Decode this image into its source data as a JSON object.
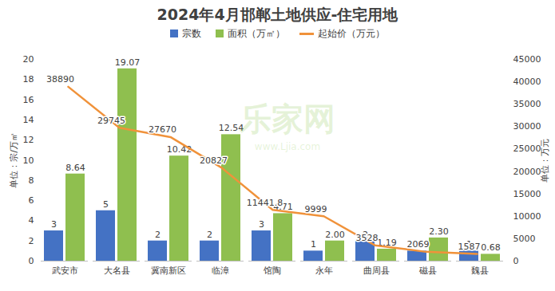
{
  "chart_data": {
    "type": "bar",
    "title": "2024年4月邯郸土地供应-住宅用地",
    "categories": [
      "武安市",
      "大名县",
      "冀南新区",
      "临漳",
      "馆陶",
      "永年",
      "曲周县",
      "磁县",
      "魏县"
    ],
    "series": [
      {
        "name": "宗数",
        "type": "bar",
        "color": "#4472c4",
        "values": [
          3,
          5,
          2,
          2,
          3,
          1,
          2,
          1,
          1
        ]
      },
      {
        "name": "面积（万㎡）",
        "type": "bar",
        "color": "#8fbf4f",
        "values": [
          8.64,
          19.07,
          10.42,
          12.54,
          4.71,
          2.0,
          1.19,
          2.3,
          0.68
        ],
        "value_labels": [
          "8.64",
          "19.07",
          "10.42",
          "12.54",
          "4.71",
          "2.00",
          "1.19",
          "2.30",
          "0.68"
        ]
      },
      {
        "name": "起始价（万元）",
        "type": "line",
        "axis": "y2",
        "color": "#f0923a",
        "values": [
          38890,
          29745,
          27670,
          20827,
          11441.8,
          9999,
          3528,
          2069,
          1587
        ]
      }
    ],
    "ylabel": "单位：宗/万㎡",
    "y2label": "单位：万元",
    "ylim": [
      0,
      20
    ],
    "yticks": [
      0,
      2,
      4,
      6,
      8,
      10,
      12,
      14,
      16,
      18,
      20
    ],
    "y2lim": [
      0,
      45000
    ],
    "y2ticks": [
      0,
      5000,
      10000,
      15000,
      20000,
      25000,
      30000,
      35000,
      40000,
      45000
    ],
    "data_labels": true,
    "legend": "top",
    "grid": false,
    "annotations": [
      "乐家网",
      "www.Ljia.com"
    ]
  }
}
